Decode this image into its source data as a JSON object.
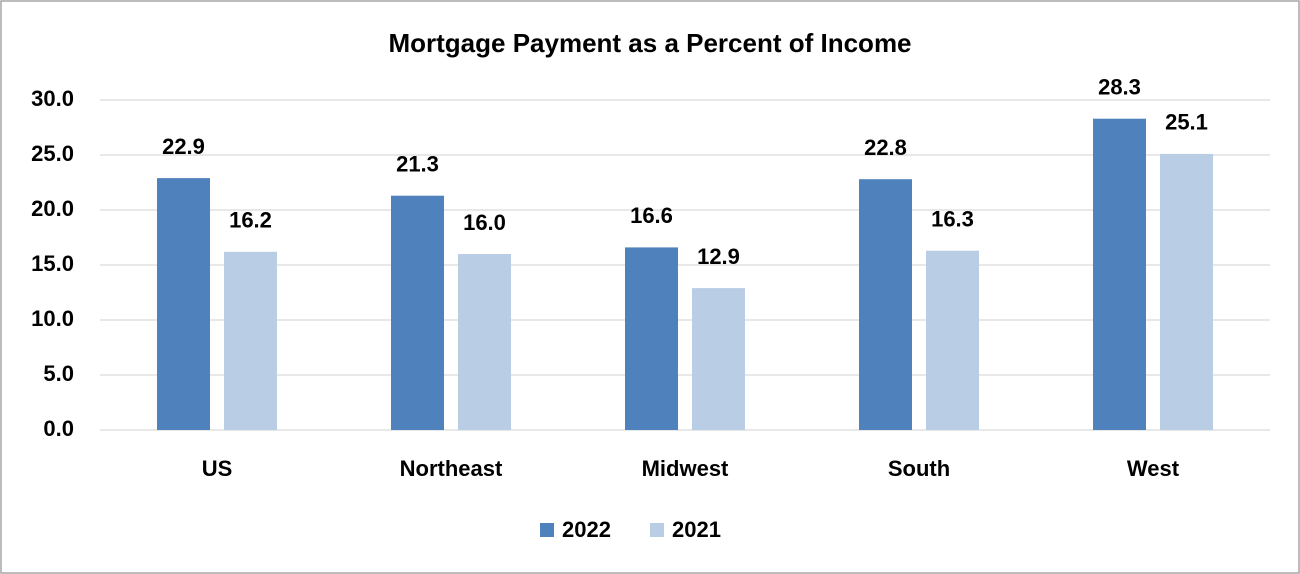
{
  "chart_data": {
    "type": "bar",
    "title": "Mortgage Payment as a Percent of Income",
    "categories": [
      "US",
      "Northeast",
      "Midwest",
      "South",
      "West"
    ],
    "series": [
      {
        "name": "2022",
        "color": "#4f81bd",
        "values": [
          22.9,
          21.3,
          16.6,
          22.8,
          28.3
        ],
        "value_labels": [
          "22.9",
          "21.3",
          "16.6",
          "22.8",
          "28.3"
        ]
      },
      {
        "name": "2021",
        "color": "#b9cde5",
        "values": [
          16.2,
          16.0,
          12.9,
          16.3,
          25.1
        ],
        "value_labels": [
          "16.2",
          "16.0",
          "12.9",
          "16.3",
          "25.1"
        ]
      }
    ],
    "ylim": [
      0,
      30
    ],
    "yticks": [
      {
        "value": 0,
        "label": "0.0"
      },
      {
        "value": 5,
        "label": "5.0"
      },
      {
        "value": 10,
        "label": "10.0"
      },
      {
        "value": 15,
        "label": "15.0"
      },
      {
        "value": 20,
        "label": "20.0"
      },
      {
        "value": 25,
        "label": "25.0"
      },
      {
        "value": 30,
        "label": "30.0"
      }
    ],
    "grid": true,
    "legend": "bottom"
  }
}
